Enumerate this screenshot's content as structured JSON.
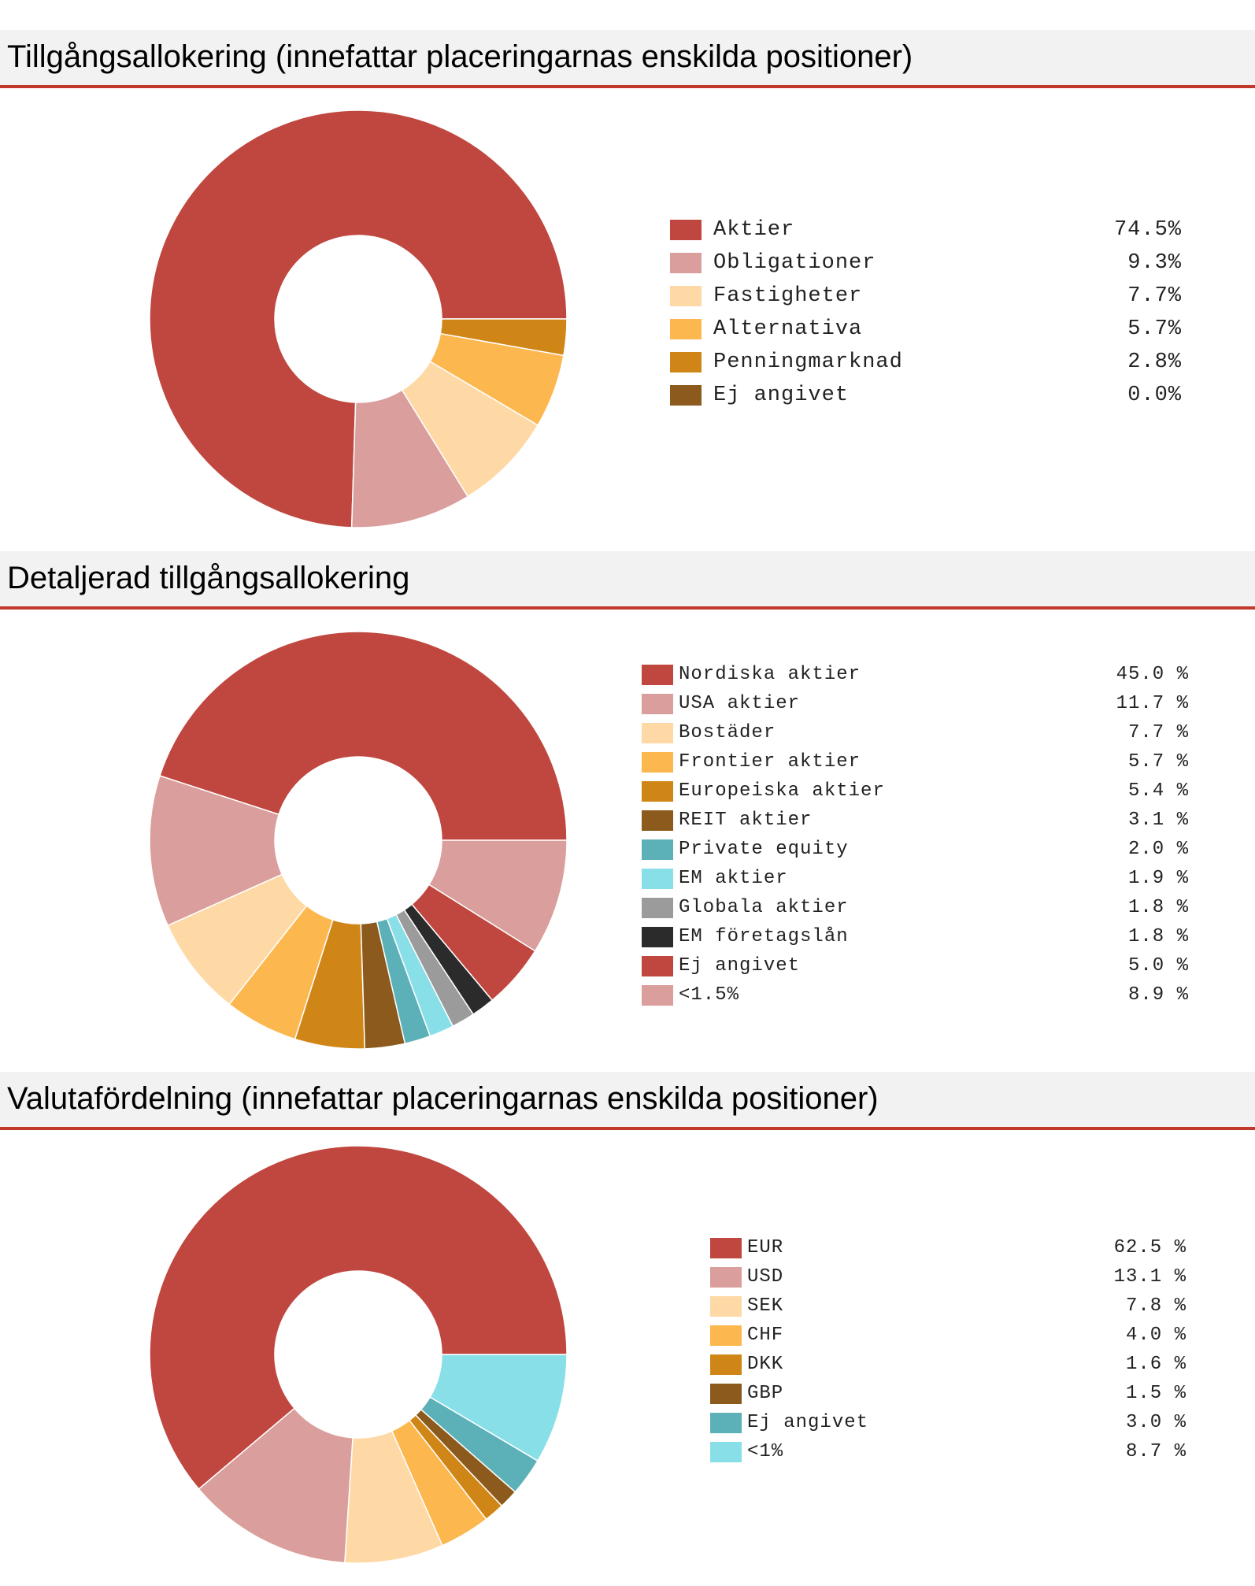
{
  "chart_data": [
    {
      "type": "pie",
      "variant": "donut",
      "title": "Tillgångsallokering (innefattar placeringarnas enskilda positioner)",
      "categories": [
        "Aktier",
        "Obligationer",
        "Fastigheter",
        "Alternativa",
        "Penningmarknad",
        "Ej angivet"
      ],
      "values": [
        74.5,
        9.3,
        7.7,
        5.7,
        2.8,
        0.0
      ],
      "value_labels": [
        "74.5%",
        "9.3%",
        "7.7%",
        "5.7%",
        "2.8%",
        "0.0%"
      ],
      "colors": [
        "#c0473f",
        "#da9e9c",
        "#fed9a5",
        "#fdb74f",
        "#d08616",
        "#8b5a1c"
      ]
    },
    {
      "type": "pie",
      "variant": "donut",
      "title": "Detaljerad tillgångsallokering",
      "categories": [
        "Nordiska aktier",
        "USA aktier",
        "Bostäder",
        "Frontier aktier",
        "Europeiska aktier",
        "REIT aktier",
        "Private equity",
        "EM aktier",
        "Globala aktier",
        "EM företagslån",
        "Ej angivet",
        "<1.5%"
      ],
      "values": [
        45.0,
        11.7,
        7.7,
        5.7,
        5.4,
        3.1,
        2.0,
        1.9,
        1.8,
        1.8,
        5.0,
        8.9
      ],
      "value_labels": [
        "45.0 %",
        "11.7 %",
        "7.7 %",
        "5.7 %",
        "5.4 %",
        "3.1 %",
        "2.0 %",
        "1.9 %",
        "1.8 %",
        "1.8 %",
        "5.0 %",
        "8.9 %"
      ],
      "colors": [
        "#c0473f",
        "#da9e9c",
        "#fed9a5",
        "#fdb74f",
        "#d08616",
        "#8b5a1c",
        "#5cb0b8",
        "#88dfe8",
        "#9b9b9b",
        "#2b2b2b",
        "#c0473f",
        "#da9e9c"
      ]
    },
    {
      "type": "pie",
      "variant": "donut",
      "title": "Valutafördelning (innefattar placeringarnas enskilda positioner)",
      "categories": [
        "EUR",
        "USD",
        "SEK",
        "CHF",
        "DKK",
        "GBP",
        "Ej angivet",
        "<1%"
      ],
      "values": [
        62.5,
        13.1,
        7.8,
        4.0,
        1.6,
        1.5,
        3.0,
        8.7
      ],
      "value_labels": [
        "62.5 %",
        "13.1 %",
        "7.8 %",
        "4.0 %",
        "1.6 %",
        "1.5 %",
        "3.0 %",
        "8.7 %"
      ],
      "colors": [
        "#c0473f",
        "#da9e9c",
        "#fed9a5",
        "#fdb74f",
        "#d08616",
        "#8b5a1c",
        "#5cb0b8",
        "#88dfe8"
      ]
    }
  ]
}
